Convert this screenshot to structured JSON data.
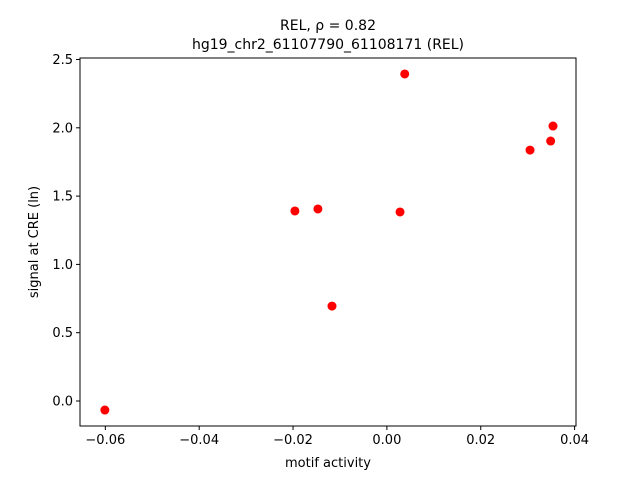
{
  "chart_data": {
    "type": "scatter",
    "title": [
      "REL, ρ = 0.82",
      "hg19_chr2_61107790_61108171 (REL)"
    ],
    "x_label": "motif activity",
    "y_label": "signal at CRE (ln)",
    "color": "#ff0000",
    "x": [
      -0.0601,
      -0.0196,
      -0.0147,
      -0.0117,
      0.0028,
      0.0038,
      0.0305,
      0.0349,
      0.0354
    ],
    "y": [
      -0.066,
      1.391,
      1.406,
      0.695,
      1.384,
      2.394,
      1.837,
      1.903,
      2.013
    ],
    "xlim": [
      -0.0654,
      0.0403
    ],
    "ylim": [
      -0.183,
      2.511
    ],
    "xticks": [
      {
        "value": -0.06,
        "label": "−0.06"
      },
      {
        "value": -0.04,
        "label": "−0.04"
      },
      {
        "value": -0.02,
        "label": "−0.02"
      },
      {
        "value": 0,
        "label": "0.00"
      },
      0.02,
      0.04
    ],
    "yticks": [
      {
        "value": 0,
        "label": "0.0"
      },
      0.5,
      {
        "value": 1,
        "label": "1.0"
      },
      1.5,
      {
        "value": 2,
        "label": "2.0"
      },
      2.5
    ]
  }
}
